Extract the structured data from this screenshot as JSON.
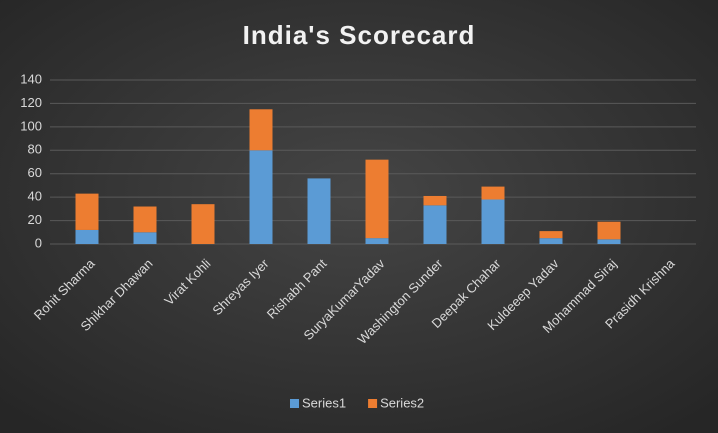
{
  "chart_data": {
    "type": "stacked_bar",
    "title": "India's Scorecard",
    "categories": [
      "Rohit Sharma",
      "Shikhar Dhawan",
      "Virat Kohli",
      "Shreyas Iyer",
      "Rishabh Pant",
      "SuryaKumarYadav",
      "Washington Sunder",
      "Deepak Chahar",
      "Kuldeeep Yadav",
      "Mohammad Siraj",
      "Prasidh Krishna"
    ],
    "series": [
      {
        "name": "Series1",
        "color": "#5b9bd5",
        "values": [
          12,
          10,
          0,
          80,
          56,
          5,
          33,
          38,
          5,
          4,
          0
        ]
      },
      {
        "name": "Series2",
        "color": "#ed7d31",
        "values": [
          31,
          22,
          34,
          35,
          0,
          67,
          8,
          11,
          6,
          15,
          0
        ]
      }
    ],
    "ylim": [
      0,
      140
    ],
    "yticks": [
      0,
      20,
      40,
      60,
      80,
      100,
      120,
      140
    ],
    "grid": true,
    "legend": "bottom"
  }
}
